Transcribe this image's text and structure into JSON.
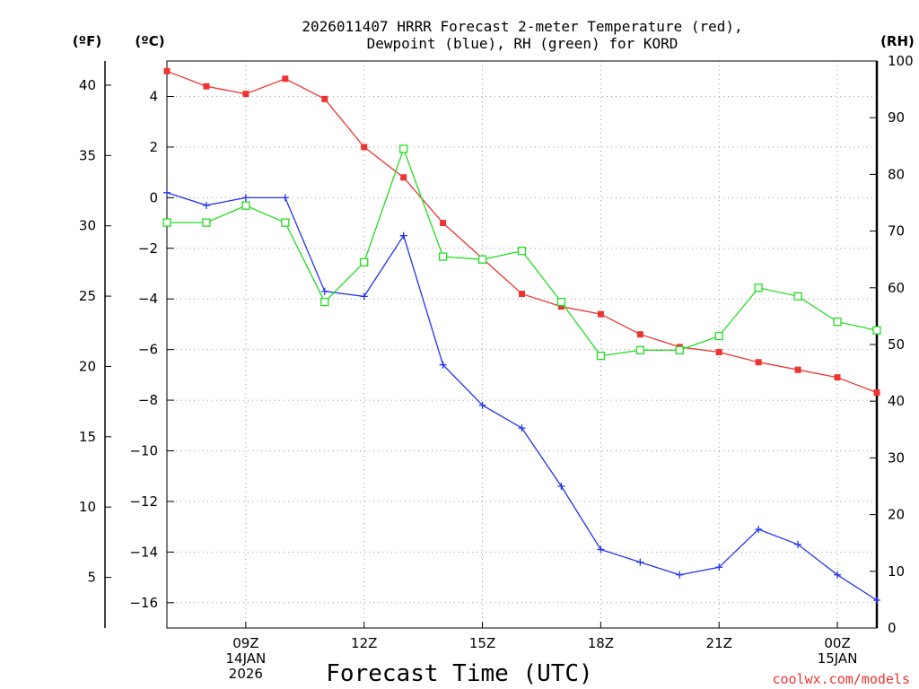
{
  "chart_data": {
    "type": "line",
    "title_lines": [
      "2026011407 HRRR Forecast 2-meter Temperature (red),",
      "Dewpoint (blue), RH (green) for KORD"
    ],
    "unit_labels": {
      "left_outer": "(ºF)",
      "left_inner": "(ºC)",
      "right": "(RH)"
    },
    "xlabel": "Forecast Time (UTC)",
    "credit": "coolwx.com/models",
    "x": [
      7,
      8,
      9,
      10,
      11,
      12,
      13,
      14,
      15,
      16,
      17,
      18,
      19,
      20,
      21,
      22,
      23,
      24,
      25
    ],
    "xlim": [
      7,
      25
    ],
    "x_ticks": [
      {
        "x": 9,
        "lines": [
          "09Z",
          "14JAN",
          "2026"
        ]
      },
      {
        "x": 12,
        "lines": [
          "12Z"
        ]
      },
      {
        "x": 15,
        "lines": [
          "15Z"
        ]
      },
      {
        "x": 18,
        "lines": [
          "18Z"
        ]
      },
      {
        "x": 21,
        "lines": [
          "21Z"
        ]
      },
      {
        "x": 24,
        "lines": [
          "00Z",
          "15JAN"
        ]
      }
    ],
    "celsius_axis": {
      "range": [
        -17.0,
        5.4
      ],
      "ticks": [
        4,
        2,
        0,
        -2,
        -4,
        -6,
        -8,
        -10,
        -12,
        -14,
        -16
      ],
      "tick_labels": [
        "4",
        "2",
        "0",
        "−2",
        "−4",
        "−6",
        "−8",
        "−10",
        "−12",
        "−14",
        "−16"
      ]
    },
    "fahrenheit_axis": {
      "ticks": [
        40,
        35,
        30,
        25,
        20,
        15,
        10,
        5
      ],
      "tick_labels": [
        "40",
        "35",
        "30",
        "25",
        "20",
        "15",
        "10",
        "5"
      ]
    },
    "rh_axis": {
      "range": [
        0,
        100
      ],
      "ticks": [
        100,
        90,
        80,
        70,
        60,
        50,
        40,
        30,
        20,
        10,
        0
      ],
      "tick_labels": [
        "100",
        "90",
        "80",
        "70",
        "60",
        "50",
        "40",
        "30",
        "20",
        "10",
        "0"
      ]
    },
    "series": [
      {
        "name": "2-meter Temperature",
        "color": "#ee3333",
        "marker": "filled-square",
        "axis": "celsius",
        "values": [
          5.0,
          4.4,
          4.1,
          4.7,
          3.9,
          2.0,
          0.8,
          -1.0,
          -2.4,
          -3.8,
          -4.3,
          -4.6,
          -5.4,
          -5.9,
          -6.1,
          -6.5,
          -6.8,
          -7.1,
          -7.7
        ]
      },
      {
        "name": "Dewpoint",
        "color": "#2233ee",
        "marker": "plus",
        "axis": "celsius",
        "values": [
          0.2,
          -0.3,
          0.0,
          0.0,
          -3.7,
          -3.9,
          -1.5,
          -6.6,
          -8.2,
          -9.1,
          -11.4,
          -13.9,
          -14.4,
          -14.9,
          -14.6,
          -13.1,
          -13.7,
          -14.9,
          -15.9
        ]
      },
      {
        "name": "RH",
        "color": "#22dd22",
        "marker": "open-square",
        "axis": "rh",
        "values": [
          71.5,
          71.5,
          74.5,
          71.5,
          57.5,
          64.5,
          84.5,
          65.5,
          65.0,
          66.5,
          57.5,
          48.0,
          49.0,
          49.0,
          51.5,
          60.0,
          58.5,
          54.0,
          52.5
        ]
      }
    ]
  }
}
